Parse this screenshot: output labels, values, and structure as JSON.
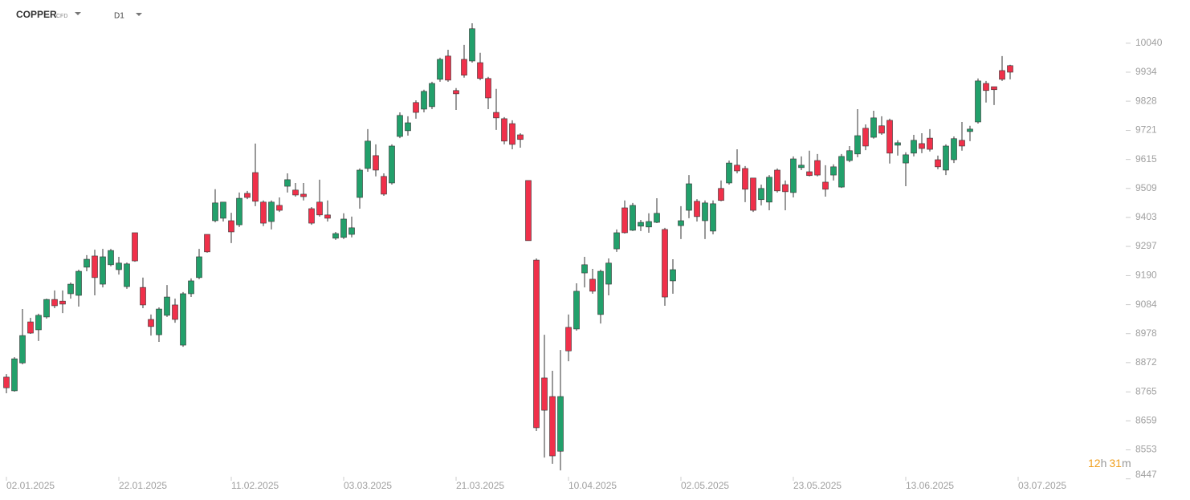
{
  "header": {
    "symbol": "COPPER",
    "instrument_type": "CFD",
    "timeframe": "D1"
  },
  "countdown": {
    "hours": 12,
    "hours_unit": "h",
    "minutes": 31,
    "minutes_unit": "m"
  },
  "chart_data": {
    "type": "candlestick",
    "categories": [
      "02.01.2025",
      null,
      null,
      null,
      null,
      null,
      null,
      null,
      null,
      null,
      null,
      null,
      null,
      null,
      "22.01.2025",
      null,
      null,
      null,
      null,
      null,
      null,
      null,
      null,
      null,
      null,
      null,
      null,
      null,
      "11.02.2025",
      null,
      null,
      null,
      null,
      null,
      null,
      null,
      null,
      null,
      null,
      null,
      null,
      null,
      "03.03.2025",
      null,
      null,
      null,
      null,
      null,
      null,
      null,
      null,
      null,
      null,
      null,
      null,
      null,
      "21.03.2025",
      null,
      null,
      null,
      null,
      null,
      null,
      null,
      null,
      null,
      null,
      null,
      null,
      null,
      "10.04.2025",
      null,
      null,
      null,
      null,
      null,
      null,
      null,
      null,
      null,
      null,
      null,
      null,
      null,
      "02.05.2025",
      null,
      null,
      null,
      null,
      null,
      null,
      null,
      null,
      null,
      null,
      null,
      null,
      null,
      "23.05.2025",
      null,
      null,
      null,
      null,
      null,
      null,
      null,
      null,
      null,
      null,
      null,
      null,
      null,
      "13.06.2025",
      null,
      null,
      null,
      null,
      null,
      null,
      null,
      null,
      null,
      null,
      null,
      null,
      null,
      "03.07.2025"
    ],
    "open": [
      8819,
      8769,
      8871,
      9021,
      8992,
      9039,
      9103,
      9097,
      9124,
      9118,
      9221,
      9262,
      9159,
      9230,
      9212,
      9150,
      9347,
      9147,
      9030,
      8974,
      9045,
      9083,
      8936,
      9124,
      9183,
      9341,
      9391,
      9400,
      9391,
      9376,
      9491,
      9567,
      9459,
      9388,
      9447,
      9517,
      9503,
      9488,
      9435,
      9459,
      9412,
      9327,
      9330,
      9341,
      9476,
      9582,
      9629,
      9553,
      9529,
      9699,
      9720,
      9823,
      9799,
      9808,
      9908,
      9993,
      9867,
      9981,
      9975,
      9969,
      9911,
      9787,
      9764,
      9746,
      9705,
      9538,
      9247,
      8816,
      8748,
      8548,
      9001,
      8995,
      9200,
      9177,
      9048,
      9159,
      9288,
      9438,
      9356,
      9371,
      9368,
      9385,
      9359,
      9171,
      9373,
      9429,
      9462,
      9391,
      9353,
      9509,
      9529,
      9594,
      9582,
      9547,
      9468,
      9459,
      9576,
      9523,
      9494,
      9585,
      9570,
      9611,
      9532,
      9558,
      9514,
      9611,
      9635,
      9729,
      9696,
      9738,
      9758,
      9667,
      9602,
      9638,
      9673,
      9693,
      9614,
      9576,
      9614,
      9685,
      9717,
      9752,
      9893,
      9881,
      9940,
      9958,
      null
    ],
    "high": [
      8830,
      8892,
      9068,
      9036,
      9051,
      9106,
      9136,
      9136,
      9165,
      9212,
      9265,
      9285,
      9288,
      9288,
      9259,
      9238,
      9347,
      9183,
      9048,
      9074,
      9156,
      9106,
      9130,
      9180,
      9288,
      9341,
      9506,
      9459,
      9420,
      9494,
      9500,
      9673,
      9465,
      9465,
      9476,
      9564,
      9529,
      9529,
      9441,
      9541,
      9465,
      9350,
      9418,
      9406,
      9582,
      9726,
      9670,
      9564,
      9670,
      9787,
      9773,
      9831,
      9870,
      9899,
      9987,
      10016,
      9876,
      10034,
      10113,
      10005,
      9917,
      9873,
      9770,
      9758,
      9711,
      9538,
      9253,
      8974,
      8842,
      8918,
      9048,
      9162,
      9259,
      9215,
      9212,
      9253,
      9359,
      9465,
      9456,
      9394,
      9418,
      9473,
      9365,
      9250,
      9444,
      9558,
      9470,
      9465,
      9465,
      9538,
      9611,
      9652,
      9591,
      9547,
      9523,
      9558,
      9582,
      9538,
      9626,
      9626,
      9647,
      9635,
      9594,
      9597,
      9635,
      9664,
      9799,
      9743,
      9793,
      9773,
      9764,
      9685,
      9641,
      9705,
      9711,
      9726,
      9629,
      9670,
      9699,
      9752,
      9738,
      9911,
      9902,
      9881,
      9993,
      9961,
      null
    ],
    "low": [
      8760,
      8766,
      8866,
      8977,
      8951,
      9033,
      9071,
      9053,
      9106,
      9077,
      9206,
      9118,
      9147,
      9224,
      9194,
      9142,
      9241,
      9071,
      8971,
      8948,
      9039,
      9018,
      8930,
      9112,
      9177,
      9274,
      9385,
      9388,
      9309,
      9368,
      9470,
      9444,
      9371,
      9359,
      9423,
      9494,
      9479,
      9465,
      9376,
      9406,
      9388,
      9321,
      9324,
      9330,
      9435,
      9570,
      9553,
      9482,
      9523,
      9693,
      9702,
      9764,
      9787,
      9799,
      9899,
      9899,
      9796,
      9914,
      9969,
      9905,
      9799,
      9723,
      9670,
      9652,
      9658,
      9318,
      8622,
      8525,
      8502,
      8478,
      8877,
      8989,
      9147,
      9124,
      9015,
      9118,
      9277,
      9344,
      9353,
      9353,
      9347,
      9382,
      9080,
      9124,
      9324,
      9400,
      9388,
      9324,
      9341,
      9462,
      9523,
      9564,
      9459,
      9423,
      9447,
      9429,
      9494,
      9429,
      9476,
      9576,
      9553,
      9553,
      9479,
      9538,
      9511,
      9605,
      9623,
      9649,
      9691,
      9705,
      9600,
      9629,
      9517,
      9626,
      9638,
      9644,
      9579,
      9558,
      9602,
      9647,
      9682,
      9746,
      9823,
      9814,
      9902,
      9908,
      null
    ],
    "close": [
      8780,
      8886,
      8971,
      8980,
      9045,
      9103,
      9080,
      9086,
      9159,
      9206,
      9250,
      9183,
      9259,
      9282,
      9236,
      9233,
      9244,
      9083,
      9004,
      9068,
      9112,
      9030,
      9124,
      9171,
      9259,
      9277,
      9456,
      9459,
      9350,
      9473,
      9476,
      9462,
      9382,
      9459,
      9429,
      9541,
      9485,
      9479,
      9382,
      9412,
      9400,
      9344,
      9397,
      9365,
      9576,
      9682,
      9576,
      9488,
      9664,
      9776,
      9749,
      9787,
      9864,
      9893,
      9981,
      9905,
      9855,
      9923,
      10093,
      9911,
      9840,
      9767,
      9682,
      9670,
      9688,
      9318,
      8634,
      8698,
      8531,
      8748,
      8915,
      9133,
      9230,
      9133,
      9206,
      9236,
      9347,
      9347,
      9447,
      9385,
      9388,
      9418,
      9112,
      9212,
      9391,
      9526,
      9406,
      9456,
      9453,
      9465,
      9602,
      9573,
      9506,
      9429,
      9509,
      9550,
      9500,
      9497,
      9617,
      9594,
      9556,
      9558,
      9506,
      9588,
      9626,
      9647,
      9702,
      9664,
      9767,
      9711,
      9638,
      9676,
      9632,
      9685,
      9655,
      9652,
      9588,
      9664,
      9691,
      9664,
      9726,
      9902,
      9867,
      9870,
      9908,
      9934,
      null
    ],
    "ylim": [
      8446,
      10198
    ],
    "yticks": [
      10040,
      9934,
      9828,
      9721,
      9615,
      9509,
      9403,
      9297,
      9190,
      9084,
      8978,
      8872,
      8765,
      8659,
      8553,
      8447
    ],
    "up_color": "#22a06b",
    "down_color": "#f0304a"
  }
}
